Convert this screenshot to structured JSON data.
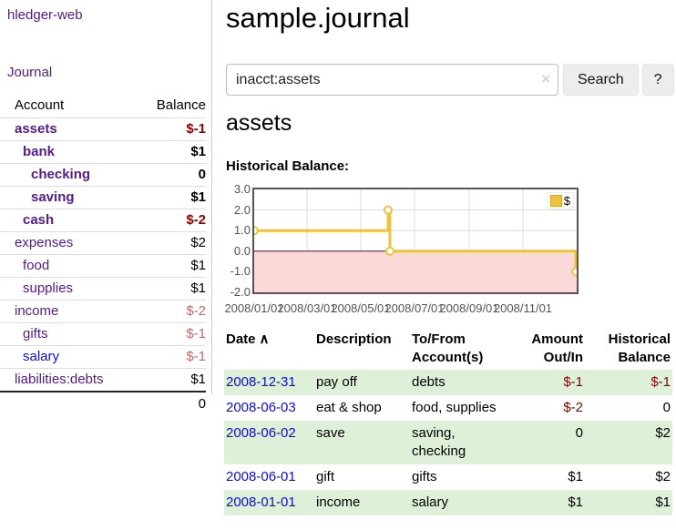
{
  "brand": "hledger-web",
  "nav": {
    "journal": "Journal"
  },
  "sidebar": {
    "col_account": "Account",
    "col_balance": "Balance",
    "accounts": [
      {
        "name": "assets",
        "depth": 0,
        "balance": "$-1",
        "emph": true,
        "tone": "neg-strong",
        "link": "purple"
      },
      {
        "name": "bank",
        "depth": 1,
        "balance": "$1",
        "emph": true,
        "tone": "normal",
        "link": "purple"
      },
      {
        "name": "checking",
        "depth": 2,
        "balance": "0",
        "emph": true,
        "tone": "normal",
        "link": "purple"
      },
      {
        "name": "saving",
        "depth": 2,
        "balance": "$1",
        "emph": true,
        "tone": "normal",
        "link": "purple"
      },
      {
        "name": "cash",
        "depth": 1,
        "balance": "$-2",
        "emph": true,
        "tone": "neg-strong",
        "link": "purple"
      },
      {
        "name": "expenses",
        "depth": 0,
        "balance": "$2",
        "emph": false,
        "tone": "normal",
        "link": "purple"
      },
      {
        "name": "food",
        "depth": 1,
        "balance": "$1",
        "emph": false,
        "tone": "normal",
        "link": "purple"
      },
      {
        "name": "supplies",
        "depth": 1,
        "balance": "$1",
        "emph": false,
        "tone": "normal",
        "link": "purple"
      },
      {
        "name": "income",
        "depth": 0,
        "balance": "$-2",
        "emph": false,
        "tone": "neg-soft",
        "link": "purple"
      },
      {
        "name": "gifts",
        "depth": 1,
        "balance": "$-1",
        "emph": false,
        "tone": "neg-soft",
        "link": "purple"
      },
      {
        "name": "salary",
        "depth": 1,
        "balance": "$-1",
        "emph": false,
        "tone": "neg-soft",
        "link": "blue"
      },
      {
        "name": "liabilities:debts",
        "depth": 0,
        "balance": "$1",
        "emph": false,
        "tone": "normal",
        "link": "purple"
      }
    ],
    "total": "0"
  },
  "header": {
    "title": "sample.journal"
  },
  "search": {
    "value": "inacct:assets",
    "clear_icon": "×",
    "search_label": "Search",
    "help_label": "?"
  },
  "account": {
    "heading": "assets",
    "chart_title": "Historical Balance:"
  },
  "chart_data": {
    "type": "line",
    "step": true,
    "title": "Historical Balance:",
    "x_domain": [
      "2008-01-01",
      "2009-01-01"
    ],
    "ylim": [
      -2,
      3
    ],
    "yticks": [
      "3.0",
      "2.0",
      "1.0",
      "0.0",
      "-1.0",
      "-2.0"
    ],
    "xticks": [
      "2008/01/01",
      "2008/03/01",
      "2008/05/01",
      "2008/07/01",
      "2008/09/01",
      "2008/11/01"
    ],
    "series": [
      {
        "name": "$",
        "color": "#edc240",
        "points": [
          {
            "date": "2008-01-01",
            "value": 1
          },
          {
            "date": "2008-06-01",
            "value": 2
          },
          {
            "date": "2008-06-03",
            "value": 0
          },
          {
            "date": "2008-12-31",
            "value": -1
          }
        ]
      }
    ],
    "legend": {
      "label": "$",
      "position": "top-right"
    },
    "grid": true,
    "negative_band_color": "#fbd9d9",
    "zero_line_color": "#8b0000",
    "marker": {
      "fill": "#ffffff",
      "stroke": "#edc240"
    }
  },
  "register": {
    "headers": {
      "date": "Date",
      "description": "Description",
      "accounts": "To/From Account(s)",
      "amount": "Amount Out/In",
      "balance": "Historical Balance"
    },
    "sort_icon": "∧",
    "rows": [
      {
        "date": "2008-12-31",
        "description": "pay off",
        "accounts": "debts",
        "amount": "$-1",
        "balance": "$-1"
      },
      {
        "date": "2008-06-03",
        "description": "eat & shop",
        "accounts": "food, supplies",
        "amount": "$-2",
        "balance": "0"
      },
      {
        "date": "2008-06-02",
        "description": "save",
        "accounts": "saving, checking",
        "amount": "0",
        "balance": "$2"
      },
      {
        "date": "2008-06-01",
        "description": "gift",
        "accounts": "gifts",
        "amount": "$1",
        "balance": "$2"
      },
      {
        "date": "2008-01-01",
        "description": "income",
        "accounts": "salary",
        "amount": "$1",
        "balance": "$1"
      }
    ]
  },
  "colors": {
    "link_purple": "#551a8b",
    "link_blue": "#0d0de0",
    "negative": "#8b0000",
    "negative_soft": "#c06a6a",
    "row_green": "#dff0d8",
    "chart_line": "#edc240",
    "chart_border": "#545454"
  }
}
